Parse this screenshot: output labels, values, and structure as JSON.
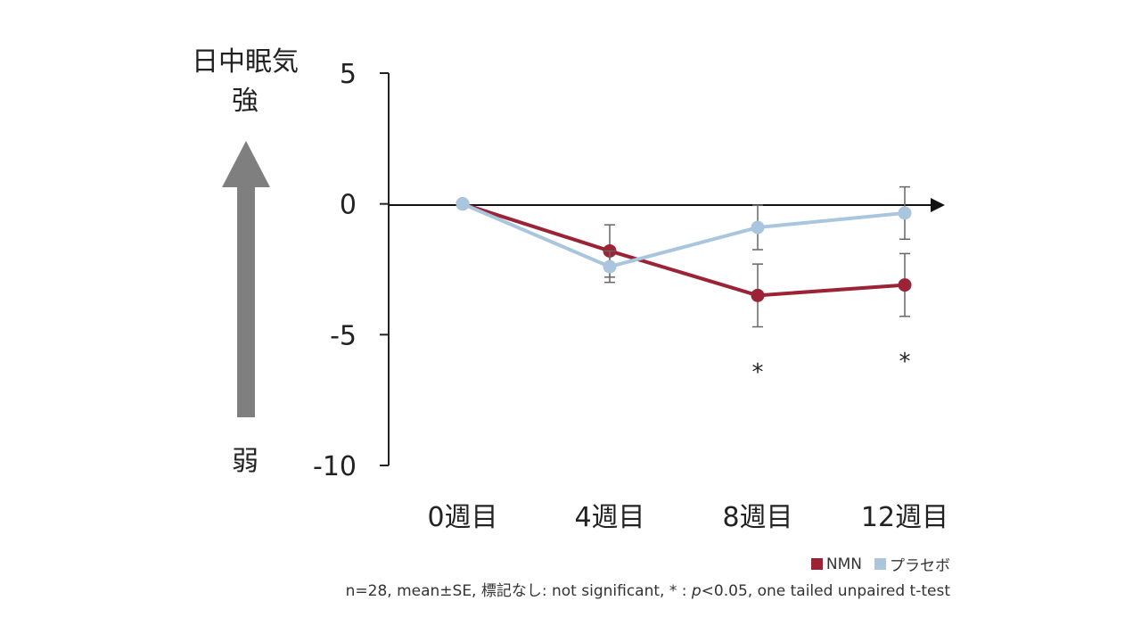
{
  "y_title_line1": "日中眠気",
  "y_title_line2": "強",
  "y_bottom_label": "弱",
  "chart_data": {
    "type": "line",
    "title": "",
    "ylabel": "日中眠気",
    "xlabel": "",
    "categories": [
      "0週目",
      "4週目",
      "8週目",
      "12週目"
    ],
    "ylim": [
      -10,
      5
    ],
    "yticks": [
      5,
      0,
      -5,
      -10
    ],
    "ytick_labels": [
      "5",
      "0",
      "-5",
      "-10"
    ],
    "series": [
      {
        "name": "NMN",
        "color": "#9b2335",
        "values": [
          0,
          -1.8,
          -3.5,
          -3.1
        ],
        "se": [
          0,
          1.0,
          1.2,
          1.2
        ]
      },
      {
        "name": "プラセボ",
        "color": "#a9c6de",
        "values": [
          0,
          -2.4,
          -0.9,
          -0.35
        ],
        "se": [
          0,
          0.6,
          0.85,
          1.0
        ]
      }
    ],
    "significance": [
      {
        "category": "8週目",
        "mark": "*"
      },
      {
        "category": "12週目",
        "mark": "*"
      }
    ]
  },
  "legend": {
    "nmn_label": "NMN",
    "nmn_color": "#9b2335",
    "placebo_label": "プラセボ",
    "placebo_color": "#a9c6de"
  },
  "footnote": {
    "prefix": "n=28, mean±SE, 標記なし: not significant, * : ",
    "p": "p",
    "suffix": "<0.05, one tailed unpaired t-test"
  }
}
